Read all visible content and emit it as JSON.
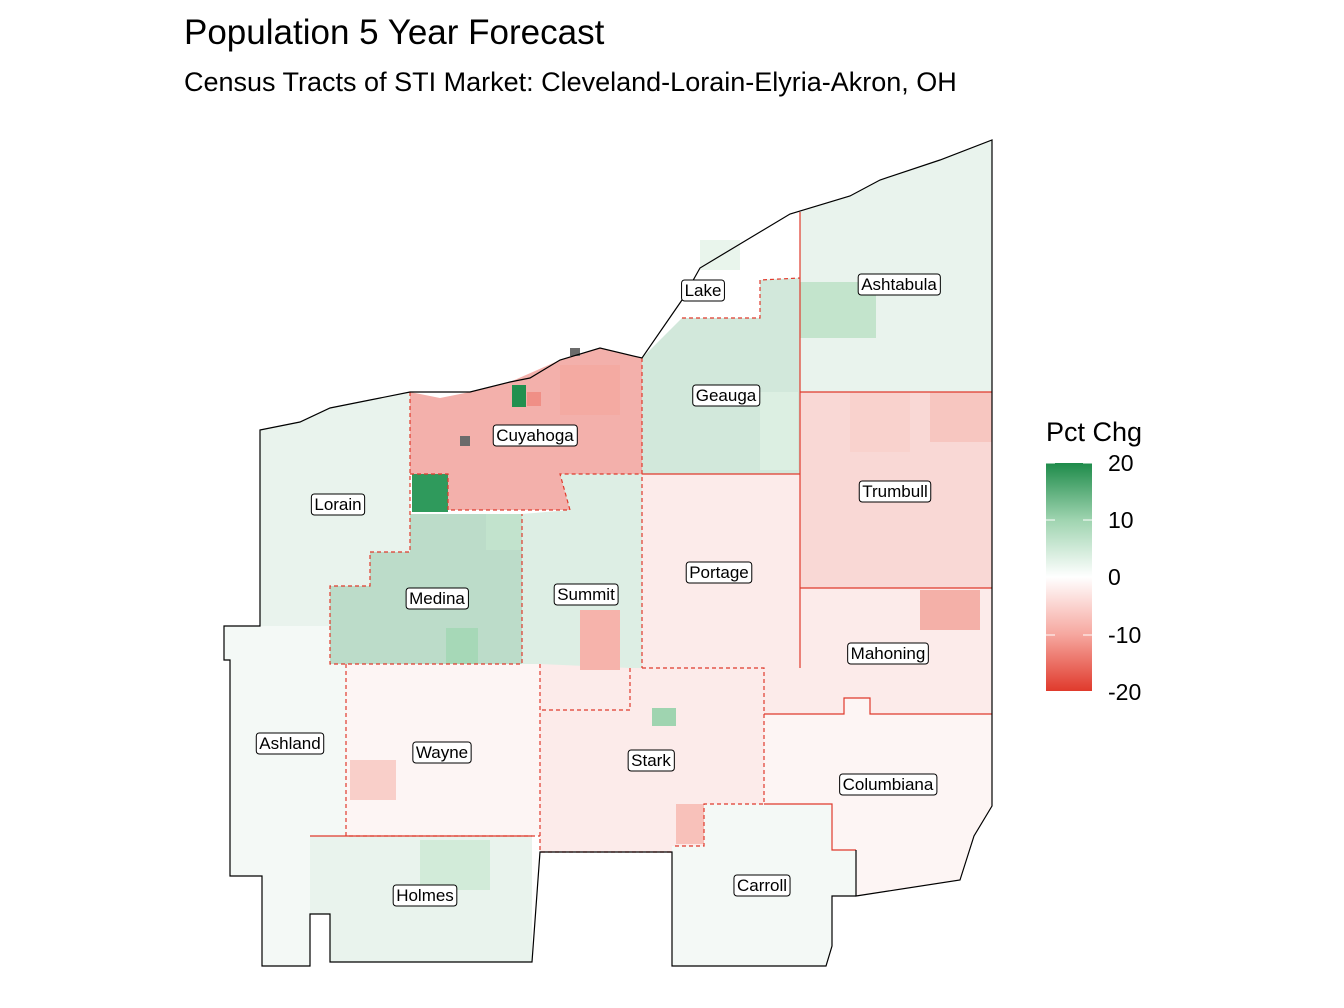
{
  "header": {
    "title": "Population 5 Year Forecast",
    "subtitle": "Census Tracts of STI Market: Cleveland-Lorain-Elyria-Akron, OH"
  },
  "legend": {
    "title": "Pct Chg",
    "ticks": [
      "20",
      "10",
      "0",
      "-10",
      "-20"
    ],
    "range": [
      -20,
      20
    ],
    "colors": {
      "high": "#1e8b4a",
      "mid": "#ffffff",
      "low": "#e03a2c"
    }
  },
  "colors": {
    "county_border": "#e03a2c",
    "outline": "#000000"
  },
  "counties": [
    {
      "id": "lake",
      "name": "Lake",
      "value": 0
    },
    {
      "id": "ashtabula",
      "name": "Ashtabula",
      "value": 2
    },
    {
      "id": "geauga",
      "name": "Geauga",
      "value": 4
    },
    {
      "id": "cuyahoga",
      "name": "Cuyahoga",
      "value": -8
    },
    {
      "id": "lorain",
      "name": "Lorain",
      "value": 2
    },
    {
      "id": "trumbull",
      "name": "Trumbull",
      "value": -4
    },
    {
      "id": "portage",
      "name": "Portage",
      "value": -2
    },
    {
      "id": "summit",
      "name": "Summit",
      "value": 3
    },
    {
      "id": "medina",
      "name": "Medina",
      "value": 6
    },
    {
      "id": "mahoning",
      "name": "Mahoning",
      "value": -2
    },
    {
      "id": "ashland",
      "name": "Ashland",
      "value": 1
    },
    {
      "id": "wayne",
      "name": "Wayne",
      "value": -1
    },
    {
      "id": "stark",
      "name": "Stark",
      "value": -2
    },
    {
      "id": "columbiana",
      "name": "Columbiana",
      "value": -1
    },
    {
      "id": "holmes",
      "name": "Holmes",
      "value": 2
    },
    {
      "id": "carroll",
      "name": "Carroll",
      "value": 1
    }
  ]
}
